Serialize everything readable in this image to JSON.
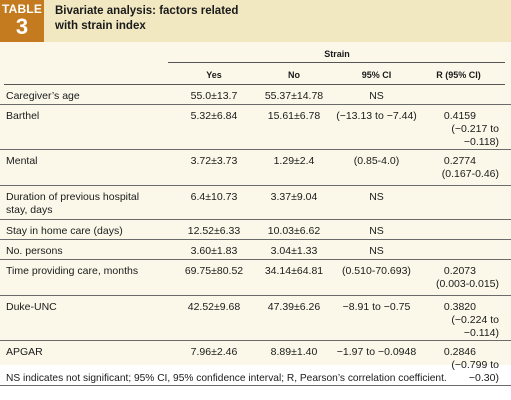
{
  "header": {
    "tag_word": "TABLE",
    "tag_number": "3",
    "title_line1": "Bivariate analysis: factors related",
    "title_line2": "with strain index"
  },
  "table": {
    "group_label": "Strain",
    "columns": [
      "Yes",
      "No",
      "95% CI",
      "R (95% CI)"
    ],
    "rows": [
      {
        "factor": [
          "Caregiver’s age"
        ],
        "yes": "55.0±13.7",
        "no": "55.37±14.78",
        "ci": "NS",
        "r": "",
        "r_ci": ""
      },
      {
        "factor": [
          "Barthel"
        ],
        "yes": "5.32±6.84",
        "no": "15.61±6.78",
        "ci": "(−13.13 to −7.44)",
        "r": "0.4159",
        "r_ci": "(−0.217 to −0.118)"
      },
      {
        "factor": [
          "Mental"
        ],
        "yes": "3.72±3.73",
        "no": "1.29±2.4",
        "ci": "(0.85-4.0)",
        "r": "0.2774",
        "r_ci": "(0.167-0.46)"
      },
      {
        "factor": [
          "Duration of previous hospital",
          "stay, days"
        ],
        "yes": "6.4±10.73",
        "no": "3.37±9.04",
        "ci": "NS",
        "r": "",
        "r_ci": ""
      },
      {
        "factor": [
          "Stay in home care (days)"
        ],
        "yes": "12.52±6.33",
        "no": "10.03±6.62",
        "ci": "NS",
        "r": "",
        "r_ci": ""
      },
      {
        "factor": [
          "No. persons"
        ],
        "yes": "3.60±1.83",
        "no": "3.04±1.33",
        "ci": "NS",
        "r": "",
        "r_ci": ""
      },
      {
        "factor": [
          "Time providing care, months"
        ],
        "yes": "69.75±80.52",
        "no": "34.14±64.81",
        "ci": "(0.510-70.693)",
        "r": "0.2073",
        "r_ci": "(0.003-0.015)"
      },
      {
        "factor": [
          "Duke-UNC"
        ],
        "yes": "42.52±9.68",
        "no": "47.39±6.26",
        "ci": "−8.91 to −0.75",
        "r": "0.3820",
        "r_ci": "(−0.224 to −0.114)"
      },
      {
        "factor": [
          "APGAR"
        ],
        "yes": "7.96±2.46",
        "no": "8.89±1.40",
        "ci": "−1.97 to −0.0948",
        "r": "0.2846",
        "r_ci": "(−0.799 to −0.30)"
      }
    ]
  },
  "footnote": "NS indicates not significant; 95% CI, 95% confidence interval; R, Pearson’s correlation coefficient.",
  "colors": {
    "tag_bg": "#c47b1f",
    "header_bg": "#f1e7c1",
    "table_bg": "#fbf8ea"
  }
}
